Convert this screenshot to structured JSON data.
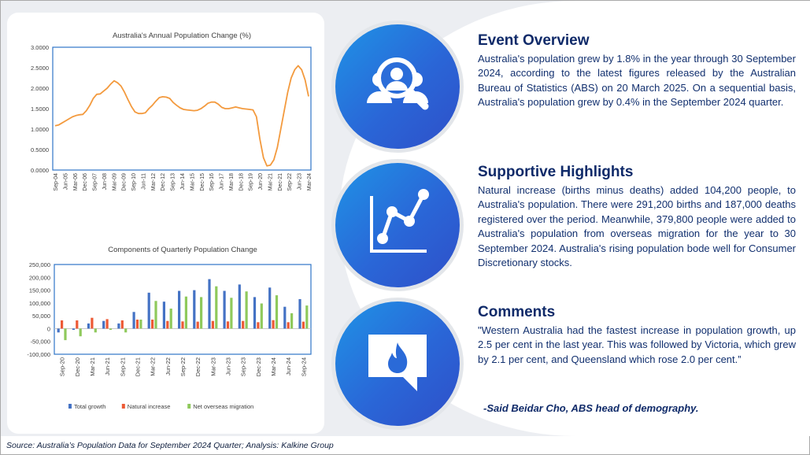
{
  "charts_panel": {
    "chart1_title": "Australia's Annual Population Change (%)",
    "chart2_title": "Components of Quarterly Population Change"
  },
  "chart_data": [
    {
      "type": "line",
      "title": "Australia's Annual Population Change (%)",
      "x_tick_labels": [
        "Sep-04",
        "Jun-05",
        "Mar-06",
        "Dec-06",
        "Sep-07",
        "Jun-08",
        "Mar-09",
        "Dec-09",
        "Sep-10",
        "Jun-11",
        "Mar-12",
        "Dec-12",
        "Sep-13",
        "Jun-14",
        "Mar-15",
        "Dec-15",
        "Sep-16",
        "Jun-17",
        "Mar-18",
        "Dec-18",
        "Sep-19",
        "Jun-20",
        "Mar-21",
        "Dec-21",
        "Sep-22",
        "Jun-23",
        "Mar-24"
      ],
      "y_tick_labels": [
        "0.0000",
        "0.5000",
        "1.0000",
        "1.5000",
        "2.0000",
        "2.5000",
        "3.0000"
      ],
      "ylim": [
        0,
        3
      ],
      "series": [
        {
          "color": "#f39a3e",
          "values": [
            1.08,
            1.1,
            1.15,
            1.2,
            1.25,
            1.3,
            1.33,
            1.35,
            1.36,
            1.45,
            1.58,
            1.75,
            1.85,
            1.86,
            1.93,
            2.0,
            2.1,
            2.18,
            2.13,
            2.05,
            1.9,
            1.72,
            1.55,
            1.42,
            1.38,
            1.38,
            1.4,
            1.5,
            1.58,
            1.68,
            1.77,
            1.79,
            1.78,
            1.75,
            1.65,
            1.58,
            1.52,
            1.48,
            1.47,
            1.46,
            1.45,
            1.46,
            1.5,
            1.56,
            1.63,
            1.66,
            1.66,
            1.61,
            1.53,
            1.5,
            1.5,
            1.52,
            1.54,
            1.52,
            1.5,
            1.49,
            1.48,
            1.47,
            1.3,
            0.75,
            0.3,
            0.1,
            0.12,
            0.25,
            0.55,
            1.0,
            1.45,
            1.9,
            2.25,
            2.45,
            2.55,
            2.45,
            2.2,
            1.8
          ]
        }
      ]
    },
    {
      "type": "bar",
      "title": "Components of Quarterly Population Change",
      "categories": [
        "Sep-20",
        "Dec-20",
        "Mar-21",
        "Jun-21",
        "Sep-21",
        "Dec-21",
        "Mar-22",
        "Jun-22",
        "Sep-22",
        "Dec-22",
        "Mar-23",
        "Jun-23",
        "Sep-23",
        "Dec-23",
        "Mar-24",
        "Jun-24",
        "Sep-24"
      ],
      "y_tick_labels": [
        "-100,000",
        "-50,000",
        "0",
        "50,000",
        "100,000",
        "150,000",
        "200,000",
        "250,000"
      ],
      "ylim": [
        -100000,
        250000
      ],
      "series": [
        {
          "name": "Total growth",
          "color": "#4472c4",
          "values": [
            -15000,
            -5000,
            20000,
            30000,
            20000,
            65000,
            140000,
            105000,
            147000,
            150000,
            193000,
            147000,
            172000,
            123000,
            160000,
            85000,
            115000
          ]
        },
        {
          "name": "Natural increase",
          "color": "#ed5a35",
          "values": [
            32000,
            32000,
            42000,
            37000,
            32000,
            35000,
            35000,
            30000,
            28000,
            27000,
            30000,
            28000,
            30000,
            25000,
            33000,
            25000,
            27000
          ]
        },
        {
          "name": "Net overseas migration",
          "color": "#8fc95c",
          "values": [
            -45000,
            -30000,
            -15000,
            -5000,
            -15000,
            35000,
            108000,
            78000,
            125000,
            123000,
            165000,
            120000,
            145000,
            98000,
            130000,
            60000,
            90000
          ]
        }
      ],
      "legend_position": "bottom"
    }
  ],
  "sections": [
    {
      "heading": "Event Overview",
      "body": "Australia's population grew by 1.8% in the year through 30 September 2024, according to the latest figures released by the Australian Bureau of Statistics (ABS) on 20 March 2025. On a sequential basis, Australia's population grew by 0.4% in the September 2024 quarter.",
      "icon": "people-search-icon"
    },
    {
      "heading": "Supportive Highlights",
      "body": "Natural increase (births minus deaths) added 104,200 people, to Australia's population. There were 291,200 births and 187,000 deaths registered over the period. Meanwhile, 379,800 people were added to Australia's population from overseas migration for the year to 30 September 2024. Australia's rising population bode well for Consumer Discretionary stocks.",
      "icon": "line-chart-icon"
    },
    {
      "heading": "Comments",
      "body": "\"Western Australia had the fastest increase in population growth, up 2.5 per cent in the last year. This was followed by Victoria, which grew by 2.1 per cent, and Queensland which rose 2.0 per cent.”",
      "icon": "speech-flame-icon"
    }
  ],
  "signature": "-Said Beidar Cho, ABS head of demography.",
  "footer": "Source: Australia’s Population Data for September 2024 Quarter; Analysis: Kalkine Group",
  "colors": {
    "navy": "#0f2a69",
    "circle_gradient_start": "#1f93e6",
    "circle_gradient_end": "#2f4fc8",
    "background": "#eceef2"
  }
}
